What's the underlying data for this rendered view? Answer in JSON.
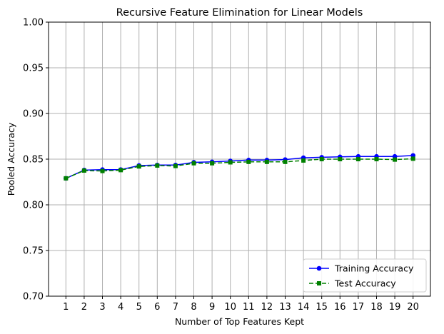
{
  "chart_data": {
    "type": "line",
    "title": "Recursive Feature Elimination for Linear Models",
    "xlabel": "Number of Top Features Kept",
    "ylabel": "Pooled Accuracy",
    "x": [
      1,
      2,
      3,
      4,
      5,
      6,
      7,
      8,
      9,
      10,
      11,
      12,
      13,
      14,
      15,
      16,
      17,
      18,
      19,
      20
    ],
    "xlim": [
      0.05,
      20.95
    ],
    "ylim": [
      0.7,
      1.0
    ],
    "yticks": [
      "0.70",
      "0.75",
      "0.80",
      "0.85",
      "0.90",
      "0.95",
      "1.00"
    ],
    "ytick_values": [
      0.7,
      0.75,
      0.8,
      0.85,
      0.9,
      0.95,
      1.0
    ],
    "grid": true,
    "legend_position": "bottom-right",
    "series": [
      {
        "name": "Training Accuracy",
        "color": "#0000ff",
        "linestyle": "solid",
        "marker": "circle",
        "values": [
          0.829,
          0.838,
          0.8385,
          0.8385,
          0.843,
          0.8435,
          0.8435,
          0.8465,
          0.847,
          0.848,
          0.849,
          0.849,
          0.8495,
          0.8515,
          0.852,
          0.8525,
          0.853,
          0.853,
          0.853,
          0.854
        ]
      },
      {
        "name": "Test Accuracy",
        "color": "#008000",
        "linestyle": "dashed",
        "marker": "square",
        "values": [
          0.829,
          0.8375,
          0.837,
          0.838,
          0.842,
          0.843,
          0.8425,
          0.8455,
          0.8455,
          0.8465,
          0.847,
          0.847,
          0.847,
          0.8485,
          0.85,
          0.85,
          0.85,
          0.85,
          0.8495,
          0.8505
        ]
      }
    ]
  }
}
